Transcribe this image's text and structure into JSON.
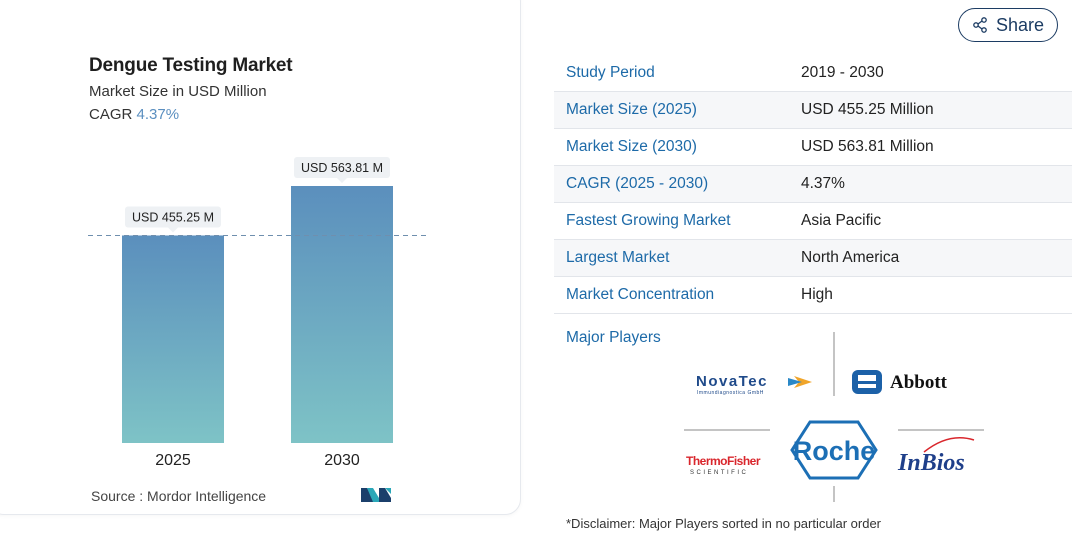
{
  "share": {
    "label": "Share",
    "icon": "share-icon"
  },
  "chart_data": {
    "type": "bar",
    "title": "Dengue Testing Market",
    "subtitle": "Market Size in USD Million",
    "cagr_label": "CAGR",
    "cagr_value": "4.37%",
    "categories": [
      "2025",
      "2030"
    ],
    "values": [
      455.25,
      563.81
    ],
    "data_labels": [
      "USD 455.25 M",
      "USD 563.81 M"
    ],
    "ylim": [
      0,
      600
    ],
    "grid": false,
    "reference_line": "2025 value (dashed)",
    "bar_gradient": {
      "top": "#5b8fbd",
      "bottom": "#7ec3c6"
    }
  },
  "source": "Source :  Mordor Intelligence",
  "table": [
    {
      "key": "Study Period",
      "value": "2019 - 2030"
    },
    {
      "key": "Market Size (2025)",
      "value": "USD 455.25 Million"
    },
    {
      "key": "Market Size (2030)",
      "value": "USD 563.81 Million"
    },
    {
      "key": "CAGR (2025 - 2030)",
      "value": "4.37%"
    },
    {
      "key": "Fastest Growing Market",
      "value": "Asia Pacific"
    },
    {
      "key": "Largest Market",
      "value": "North America"
    },
    {
      "key": "Market Concentration",
      "value": "High"
    }
  ],
  "major_players_label": "Major Players",
  "players": {
    "novatec": {
      "name": "NovaTec",
      "sub": "Immundiagnostica GmbH"
    },
    "abbott": {
      "name": "Abbott"
    },
    "thermo": {
      "name": "ThermoFisher",
      "sub": "SCIENTIFIC"
    },
    "roche": {
      "name": "Roche"
    },
    "inbios": {
      "name": "InBios"
    }
  },
  "disclaimer": "*Disclaimer: Major Players sorted in no particular order",
  "colors": {
    "accent": "#1d6aa8",
    "cagr": "#5b8fc0",
    "share": "#1c3c63"
  }
}
